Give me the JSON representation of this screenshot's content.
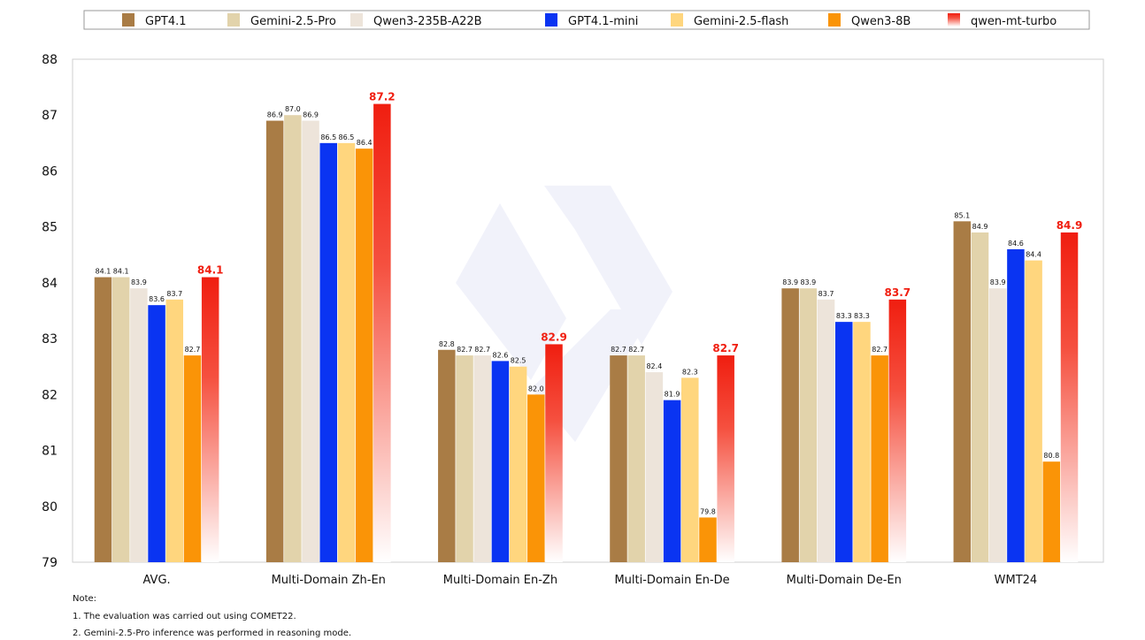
{
  "chart_data": {
    "type": "bar",
    "title": "",
    "xlabel": "",
    "ylabel": "",
    "ylim": [
      79,
      88
    ],
    "yticks": [
      79,
      80,
      81,
      82,
      83,
      84,
      85,
      86,
      87,
      88
    ],
    "grid": false,
    "legend_position": "top",
    "categories": [
      "AVG.",
      "Multi-Domain Zh-En",
      "Multi-Domain En-Zh",
      "Multi-Domain En-De",
      "Multi-Domain De-En",
      "WMT24"
    ],
    "series": [
      {
        "name": "GPT4.1",
        "color": "#A97C45",
        "values": [
          84.1,
          86.9,
          82.8,
          82.7,
          83.9,
          85.1
        ]
      },
      {
        "name": "Gemini-2.5-Pro",
        "color": "#E2D3AB",
        "values": [
          84.1,
          87.0,
          82.7,
          82.7,
          83.9,
          84.9
        ]
      },
      {
        "name": "Qwen3-235B-A22B",
        "color": "#EDE4DA",
        "values": [
          83.9,
          86.9,
          82.7,
          82.4,
          83.7,
          83.9
        ]
      },
      {
        "name": "GPT4.1-mini",
        "color": "#0A34F2",
        "values": [
          83.6,
          86.5,
          82.6,
          81.9,
          83.3,
          84.6
        ]
      },
      {
        "name": "Gemini-2.5-flash",
        "color": "#FFD67E",
        "values": [
          83.7,
          86.5,
          82.5,
          82.3,
          83.3,
          84.4
        ]
      },
      {
        "name": "Qwen3-8B",
        "color": "#FA9407",
        "values": [
          82.7,
          86.4,
          82.0,
          79.8,
          82.7,
          80.8
        ]
      },
      {
        "name": "qwen-mt-turbo",
        "color": "#F01E10",
        "gradient": true,
        "highlight": true,
        "values": [
          84.1,
          87.2,
          82.9,
          82.7,
          83.7,
          84.9
        ]
      }
    ]
  },
  "notes": {
    "heading": "Note:",
    "lines": [
      "1. The evaluation was carried out using COMET22.",
      "2. Gemini-2.5-Pro inference was performed in reasoning mode."
    ]
  }
}
